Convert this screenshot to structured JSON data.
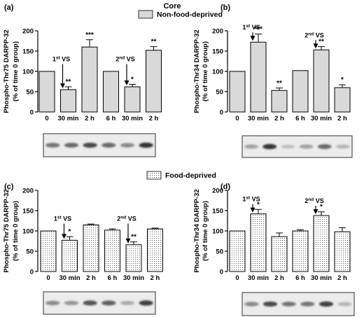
{
  "header": {
    "title": "Core"
  },
  "legend_top": {
    "label": "Non-food-deprived"
  },
  "legend_mid": {
    "label": "Food-deprived"
  },
  "colors": {
    "bar_fill": "#d9d9d9",
    "stroke": "#000000"
  },
  "chart_data": [
    {
      "type": "bar",
      "panel_label": "(a)",
      "ylabel_line1": "Phospho-Thr75 DARPP-32",
      "ylabel_line2": "(% of time 0 group)",
      "ylim": [
        0,
        200
      ],
      "yticks": [
        0,
        50,
        100,
        150,
        200
      ],
      "categories": [
        "0",
        "30 min",
        "2 h",
        "6 h",
        "30 min",
        "2 h"
      ],
      "values": [
        100,
        55,
        160,
        100,
        62,
        152
      ],
      "errors": [
        0,
        7,
        18,
        0,
        6,
        9
      ],
      "significance": [
        "",
        "**",
        "***",
        "",
        "*",
        "**"
      ],
      "fill": "solid",
      "annotations": [
        {
          "text": "1st VS",
          "sup": "st",
          "before_index": 1
        },
        {
          "text": "2nd VS",
          "sup": "nd",
          "before_index": 4
        }
      ]
    },
    {
      "type": "bar",
      "panel_label": "(b)",
      "ylabel_line1": "Phospho-Thr34 DARPP-32",
      "ylabel_line2": "(% of time 0 group)",
      "ylim": [
        0,
        200
      ],
      "yticks": [
        0,
        50,
        100,
        150,
        200
      ],
      "categories": [
        "0",
        "30 min",
        "2 h",
        "6 h",
        "30 min",
        "2 h"
      ],
      "values": [
        100,
        172,
        53,
        102,
        153,
        60
      ],
      "errors": [
        0,
        20,
        6,
        0,
        8,
        7
      ],
      "significance": [
        "",
        "***",
        "**",
        "",
        "**",
        "*"
      ],
      "fill": "solid",
      "annotations": [
        {
          "text": "1st VS",
          "sup": "st",
          "before_index": 1
        },
        {
          "text": "2nd VS",
          "sup": "nd",
          "before_index": 4
        }
      ]
    },
    {
      "type": "bar",
      "panel_label": "(c)",
      "ylabel_line1": "Phospho-Thr75 DARPP-32",
      "ylabel_line2": "(% of time 0 group)",
      "ylim": [
        0,
        200
      ],
      "yticks": [
        0,
        50,
        100,
        150,
        200
      ],
      "categories": [
        "0",
        "30 min",
        "2 h",
        "6 h",
        "30 min",
        "2 h"
      ],
      "values": [
        100,
        77,
        115,
        102,
        66,
        105
      ],
      "errors": [
        0,
        9,
        2,
        3,
        7,
        2
      ],
      "significance": [
        "",
        "*",
        "",
        "",
        "**",
        ""
      ],
      "fill": "dotted",
      "annotations": [
        {
          "text": "1st VS",
          "sup": "st",
          "before_index": 1
        },
        {
          "text": "2nd VS",
          "sup": "nd",
          "before_index": 4
        }
      ]
    },
    {
      "type": "bar",
      "panel_label": "(d)",
      "ylabel_line1": "Phospho-Thr34 DARPP-32",
      "ylabel_line2": "(% of time 0 group)",
      "ylim": [
        0,
        200
      ],
      "yticks": [
        0,
        50,
        100,
        150,
        200
      ],
      "categories": [
        "0",
        "30 min",
        "2 h",
        "6 h",
        "30 min",
        "2 h"
      ],
      "values": [
        100,
        142,
        86,
        100,
        138,
        98
      ],
      "errors": [
        0,
        11,
        9,
        3,
        9,
        10
      ],
      "significance": [
        "",
        "*",
        "",
        "",
        "*",
        ""
      ],
      "fill": "dotted",
      "annotations": [
        {
          "text": "1st VS",
          "sup": "st",
          "before_index": 1
        },
        {
          "text": "2nd VS",
          "sup": "nd",
          "before_index": 4
        }
      ]
    }
  ],
  "blots": [
    {
      "bands": [
        0.55,
        0.6,
        0.75,
        0.6,
        0.45,
        0.85
      ]
    },
    {
      "bands": [
        0.35,
        0.85,
        0.2,
        0.35,
        0.6,
        0.25
      ]
    },
    {
      "bands": [
        0.45,
        0.4,
        0.7,
        0.65,
        0.3,
        0.8
      ]
    },
    {
      "bands": [
        0.45,
        0.75,
        0.55,
        0.55,
        0.8,
        0.25
      ]
    }
  ]
}
